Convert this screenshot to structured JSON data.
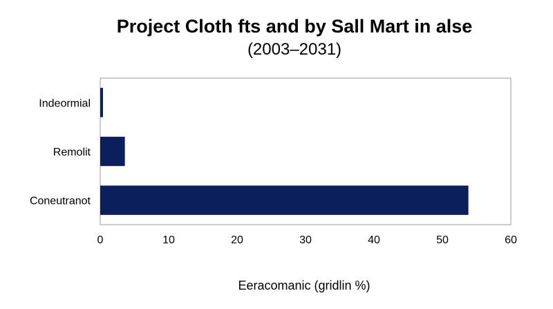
{
  "chart_data": {
    "type": "bar",
    "orientation": "horizontal",
    "title": "Project Cloth fts and by Sall Mart in alse",
    "subtitle": "(2003–2031)",
    "xlabel": "Eeracomanic (gridlin %)",
    "ylabel": "",
    "categories": [
      "Indeormial",
      "Remolit",
      "Coneutranot"
    ],
    "values": [
      0.4,
      3.6,
      53.8
    ],
    "xlim": [
      0,
      60
    ],
    "xticks": [
      "0",
      "10",
      "20",
      "30",
      "40",
      "50",
      "60"
    ],
    "grid": false,
    "legend": "none",
    "bar_color": "#0b1f5c"
  }
}
